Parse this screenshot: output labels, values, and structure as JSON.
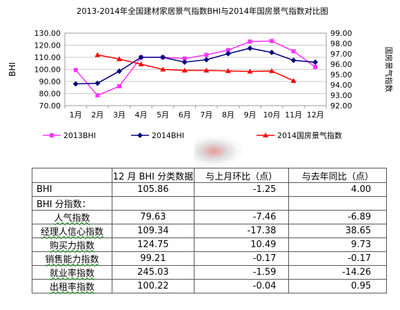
{
  "chart_data": {
    "type": "line",
    "title": "2013-2014年全国建材家居景气指数BHI与2014年国房景气指数对比图",
    "ylabel_left": "BHI",
    "ylabel_right": "国房景气指数",
    "categories": [
      "1月",
      "2月",
      "3月",
      "4月",
      "5月",
      "6月",
      "7月",
      "8月",
      "9月",
      "10月",
      "11月",
      "12月"
    ],
    "ylim_left": [
      70,
      130
    ],
    "yticks_left": [
      "70.00",
      "80.00",
      "90.00",
      "100.00",
      "110.00",
      "120.00",
      "130.00"
    ],
    "ylim_right": [
      92,
      99
    ],
    "yticks_right": [
      "92.00",
      "93.00",
      "94.00",
      "95.00",
      "96.00",
      "97.00",
      "98.00",
      "99.00"
    ],
    "grid": true,
    "legend_position": "bottom",
    "series": [
      {
        "name": "2013BHI",
        "axis": "left",
        "color": "#ff33ff",
        "marker": "square",
        "values": [
          99.5,
          78.5,
          86,
          110,
          110,
          109,
          112,
          116,
          123,
          123.5,
          115,
          102
        ]
      },
      {
        "name": "2014BHI",
        "axis": "left",
        "color": "#000080",
        "marker": "diamond",
        "values": [
          88,
          88.5,
          98.5,
          110,
          110,
          106,
          108,
          113,
          117.5,
          114,
          107.5,
          105.9
        ]
      },
      {
        "name": "2014国房景气指数",
        "axis": "right",
        "color": "#ff0000",
        "marker": "triangle",
        "values": [
          null,
          96.9,
          96.5,
          96.0,
          95.5,
          95.4,
          95.4,
          95.35,
          95.3,
          95.35,
          94.4,
          null
        ]
      }
    ]
  },
  "table": {
    "header": [
      "",
      "12 月 BHI 分类数据",
      "与上月环比（点）",
      "与去年同比（点）"
    ],
    "rows": [
      {
        "label": "BHI",
        "value": "105.86",
        "mom": "-1.25",
        "yoy": "4.00",
        "type": "main"
      },
      {
        "label": "BHI 分指数：",
        "value": "",
        "mom": "",
        "yoy": "",
        "type": "section"
      },
      {
        "label": "人气指数",
        "value": "79.63",
        "mom": "-7.46",
        "yoy": "-6.89",
        "type": "sub"
      },
      {
        "label": "经理人信心指数",
        "value": "109.34",
        "mom": "-17.38",
        "yoy": "38.65",
        "type": "sub"
      },
      {
        "label": "购买力指数",
        "value": "124.75",
        "mom": "10.49",
        "yoy": "9.73",
        "type": "sub"
      },
      {
        "label": "销售能力指数",
        "value": "99.21",
        "mom": "-0.17",
        "yoy": "-0.17",
        "type": "sub"
      },
      {
        "label": "就业率指数",
        "value": "245.03",
        "mom": "-1.59",
        "yoy": "-14.26",
        "type": "sub"
      },
      {
        "label": "出租率指数",
        "value": "100.22",
        "mom": "-0.04",
        "yoy": "0.95",
        "type": "sub"
      }
    ]
  }
}
